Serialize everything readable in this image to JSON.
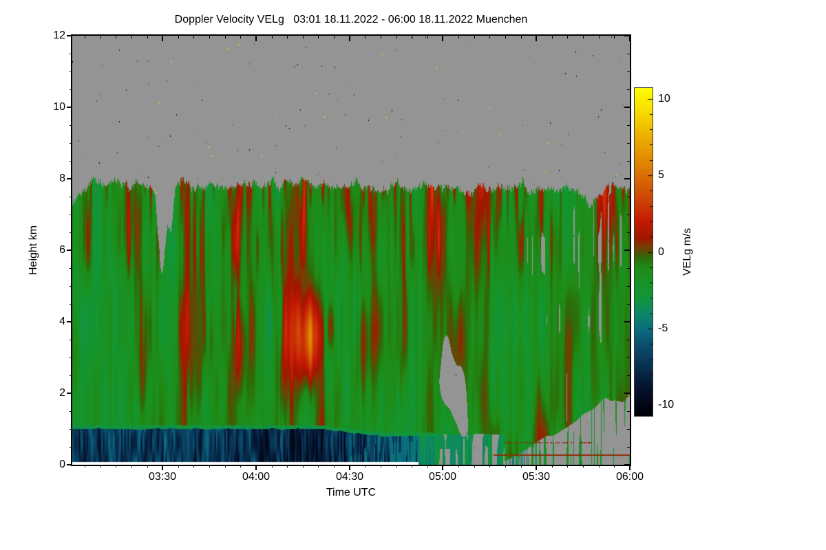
{
  "chart_data": {
    "type": "heatmap",
    "title": "Doppler Velocity VELg   03:01 18.11.2022 - 06:00 18.11.2022 Muenchen",
    "quantity": "Doppler Velocity VELg",
    "time_start_label": "03:01 18.11.2022",
    "time_end_label": "06:00 18.11.2022",
    "site": "Muenchen",
    "xlabel": "Time UTC",
    "ylabel": "Height km",
    "x_axis": {
      "start_hour_utc": 3.0167,
      "end_hour_utc": 6.0,
      "major_ticks": [
        {
          "hour": 3.5,
          "label": "03:30"
        },
        {
          "hour": 4.0,
          "label": "04:00"
        },
        {
          "hour": 4.5,
          "label": "04:30"
        },
        {
          "hour": 5.0,
          "label": "05:00"
        },
        {
          "hour": 5.5,
          "label": "05:30"
        },
        {
          "hour": 6.0,
          "label": "06:00"
        }
      ],
      "minor_tick_minutes": 5
    },
    "y_axis": {
      "min_km": 0,
      "max_km": 12,
      "major_ticks": [
        0,
        2,
        4,
        6,
        8,
        10,
        12
      ],
      "minor_step_km": 0.5
    },
    "colorbar": {
      "label": "VELg m/s",
      "min": -10.7,
      "max": 10.7,
      "major_ticks": [
        10,
        5,
        0,
        -5,
        -10
      ],
      "minor_step": 1
    },
    "colormap_stops": [
      [
        -10.7,
        "#000006"
      ],
      [
        -9.0,
        "#04102a"
      ],
      [
        -7.5,
        "#083050"
      ],
      [
        -6.0,
        "#0a5070"
      ],
      [
        -5.0,
        "#0a6e7e"
      ],
      [
        -4.0,
        "#0c8866"
      ],
      [
        -3.0,
        "#12953c"
      ],
      [
        -2.0,
        "#179427"
      ],
      [
        -1.0,
        "#1f8a16"
      ],
      [
        -0.35,
        "#2f6a08"
      ],
      [
        0.0,
        "#584e04"
      ],
      [
        0.35,
        "#7a3c02"
      ],
      [
        0.9,
        "#a01600"
      ],
      [
        2.0,
        "#c41a04"
      ],
      [
        3.5,
        "#ce4606"
      ],
      [
        5.5,
        "#de7e02"
      ],
      [
        7.5,
        "#ecae00"
      ],
      [
        9.0,
        "#f6d800"
      ],
      [
        10.7,
        "#ffff00"
      ]
    ],
    "no_data_color": "#949494",
    "scene": {
      "description": "Cloud radar Doppler velocity: precipitating cloud 0-8 km, mean in-cloud velocity -1.5 m/s (green) with convective updraft streaks up to +3 m/s (red), fast-falling rain -5 to -10 m/s (dark blue) below bright melting layer near 1 km until ~04:50, no-data gray above echo top and in gaps after ~05:20",
      "echo": {
        "top_km_mean": 7.78,
        "top_km_max": 8.06,
        "background_velocity_ms": -1.5,
        "top_gaps": [
          {
            "t": 3.498,
            "ts": 0.02,
            "depth_km": 2.45
          },
          {
            "t": 3.545,
            "ts": 0.012,
            "depth_km": 1.1
          },
          {
            "t": 3.02,
            "ts": 0.05,
            "depth_km": 0.45
          },
          {
            "t": 4.12,
            "ts": 0.012,
            "depth_km": 0.3
          },
          {
            "t": 5.79,
            "ts": 0.04,
            "depth_km": 0.5
          }
        ]
      },
      "updraft_cells": [
        {
          "t": 3.38,
          "ts": 0.015,
          "h": 6.5,
          "hs": 1.0,
          "amp": 2.0
        },
        {
          "t": 3.63,
          "ts": 0.03,
          "h": 6.8,
          "hs": 1.4,
          "amp": 3.2
        },
        {
          "t": 3.7,
          "ts": 0.02,
          "h": 6.0,
          "hs": 1.6,
          "amp": 2.6
        },
        {
          "t": 3.9,
          "ts": 0.02,
          "h": 7.0,
          "hs": 1.0,
          "amp": 2.2
        },
        {
          "t": 4.08,
          "ts": 0.015,
          "h": 6.5,
          "hs": 1.2,
          "amp": 2.0
        },
        {
          "t": 4.24,
          "ts": 0.02,
          "h": 7.0,
          "hs": 1.0,
          "amp": 2.8
        },
        {
          "t": 4.3,
          "ts": 0.04,
          "h": 3.4,
          "hs": 0.7,
          "amp": 1.8
        },
        {
          "t": 4.4,
          "ts": 0.03,
          "h": 3.8,
          "hs": 0.6,
          "amp": 2.6
        },
        {
          "t": 4.5,
          "ts": 0.025,
          "h": 7.2,
          "hs": 0.9,
          "amp": 2.4
        },
        {
          "t": 4.62,
          "ts": 0.02,
          "h": 7.4,
          "hs": 0.8,
          "amp": 2.2
        },
        {
          "t": 4.77,
          "ts": 0.02,
          "h": 6.9,
          "hs": 1.0,
          "amp": 2.0
        },
        {
          "t": 4.97,
          "ts": 0.02,
          "h": 7.0,
          "hs": 1.0,
          "amp": 2.2
        },
        {
          "t": 5.28,
          "ts": 0.02,
          "h": 7.2,
          "hs": 0.9,
          "amp": 2.0
        },
        {
          "t": 5.52,
          "ts": 0.02,
          "h": 7.0,
          "hs": 1.0,
          "amp": 2.0
        },
        {
          "t": 5.9,
          "ts": 0.025,
          "h": 7.3,
          "hs": 0.8,
          "amp": 2.2
        }
      ],
      "warm_midlevel_patch": {
        "t": 4.3,
        "ts": 0.25,
        "h": 3.6,
        "hs": 0.9,
        "amp": 2.0
      },
      "melting_layer": {
        "h_km_start": 1.05,
        "h_km_end": 0.85,
        "descend_t": [
          4.3,
          4.72
        ],
        "bright_line_velocity_ms": -3.1,
        "bright_line_half_width_km": 0.05,
        "bright_line_end_t": 4.98
      },
      "rain_band": {
        "t_end": 4.87,
        "velocity_ms_center": -7.2,
        "velocity_ms_range": [
          -10.5,
          -4.4
        ],
        "darkest_t": 4.22,
        "teal_mix_t": [
          4.5,
          4.87
        ]
      },
      "surface_clear_strip": {
        "h_km": 0.07,
        "t_end": 4.87,
        "color": "#ffffff"
      },
      "gray_holes": [
        {
          "t": 5.045,
          "ts": 0.048,
          "h": 2.3,
          "hs": 0.5,
          "w": 1.0
        },
        {
          "t": 5.095,
          "ts": 0.028,
          "h": 1.35,
          "hs": 0.45,
          "w": 0.8
        },
        {
          "t": 5.02,
          "ts": 0.02,
          "h": 3.3,
          "hs": 0.5,
          "w": 0.6
        },
        {
          "t": 5.12,
          "ts": 0.015,
          "h": 1.0,
          "hs": 0.2,
          "w": 0.5
        }
      ],
      "lower_right_gap": {
        "t_start": 5.3,
        "rise_km_per_hour": 3.0,
        "max_km": 2.6
      },
      "upper_right_wisps": {
        "t": 5.82,
        "ts": 0.12,
        "h": 6.35,
        "hs": 0.9
      },
      "ground_clutter_line": {
        "h_km": 0.27,
        "t_start": 5.27,
        "velocity_ms": 0.5
      },
      "dotted_line": {
        "h_km": 0.62,
        "t_range": [
          5.33,
          5.8
        ],
        "velocity_ms": 0.8
      },
      "speckle_noise_count": 150
    }
  }
}
